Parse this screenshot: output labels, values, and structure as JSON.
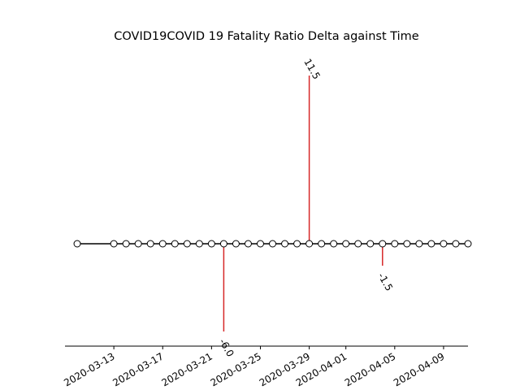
{
  "chart_data": {
    "type": "timeline",
    "title": "COVID19COVID 19 Fatality Ratio Delta against Time",
    "xlabel": "",
    "ylabel": "",
    "xlim": [
      "2020-03-09",
      "2020-04-11"
    ],
    "ylim": [
      -7.0,
      13.5
    ],
    "x_tick_labels": [
      "2020-03-13",
      "2020-03-17",
      "2020-03-21",
      "2020-03-25",
      "2020-03-29",
      "2020-04-01",
      "2020-04-05",
      "2020-04-09"
    ],
    "dates": [
      "2020-03-10",
      "2020-03-13",
      "2020-03-14",
      "2020-03-15",
      "2020-03-16",
      "2020-03-17",
      "2020-03-18",
      "2020-03-19",
      "2020-03-20",
      "2020-03-21",
      "2020-03-22",
      "2020-03-23",
      "2020-03-24",
      "2020-03-25",
      "2020-03-26",
      "2020-03-27",
      "2020-03-28",
      "2020-03-29",
      "2020-03-30",
      "2020-03-31",
      "2020-04-01",
      "2020-04-02",
      "2020-04-03",
      "2020-04-04",
      "2020-04-05",
      "2020-04-06",
      "2020-04-07",
      "2020-04-08",
      "2020-04-09",
      "2020-04-10",
      "2020-04-11"
    ],
    "events": [
      {
        "date": "2020-03-22",
        "value": -6.0,
        "label": "-6.0"
      },
      {
        "date": "2020-03-29",
        "value": 11.5,
        "label": "11.5"
      },
      {
        "date": "2020-04-04",
        "value": -1.5,
        "label": "-1.5"
      }
    ],
    "marker_style": "white-filled-circle",
    "baseline_color": "#000000",
    "stem_color": "#d62728",
    "grid": false,
    "legend": "none"
  }
}
